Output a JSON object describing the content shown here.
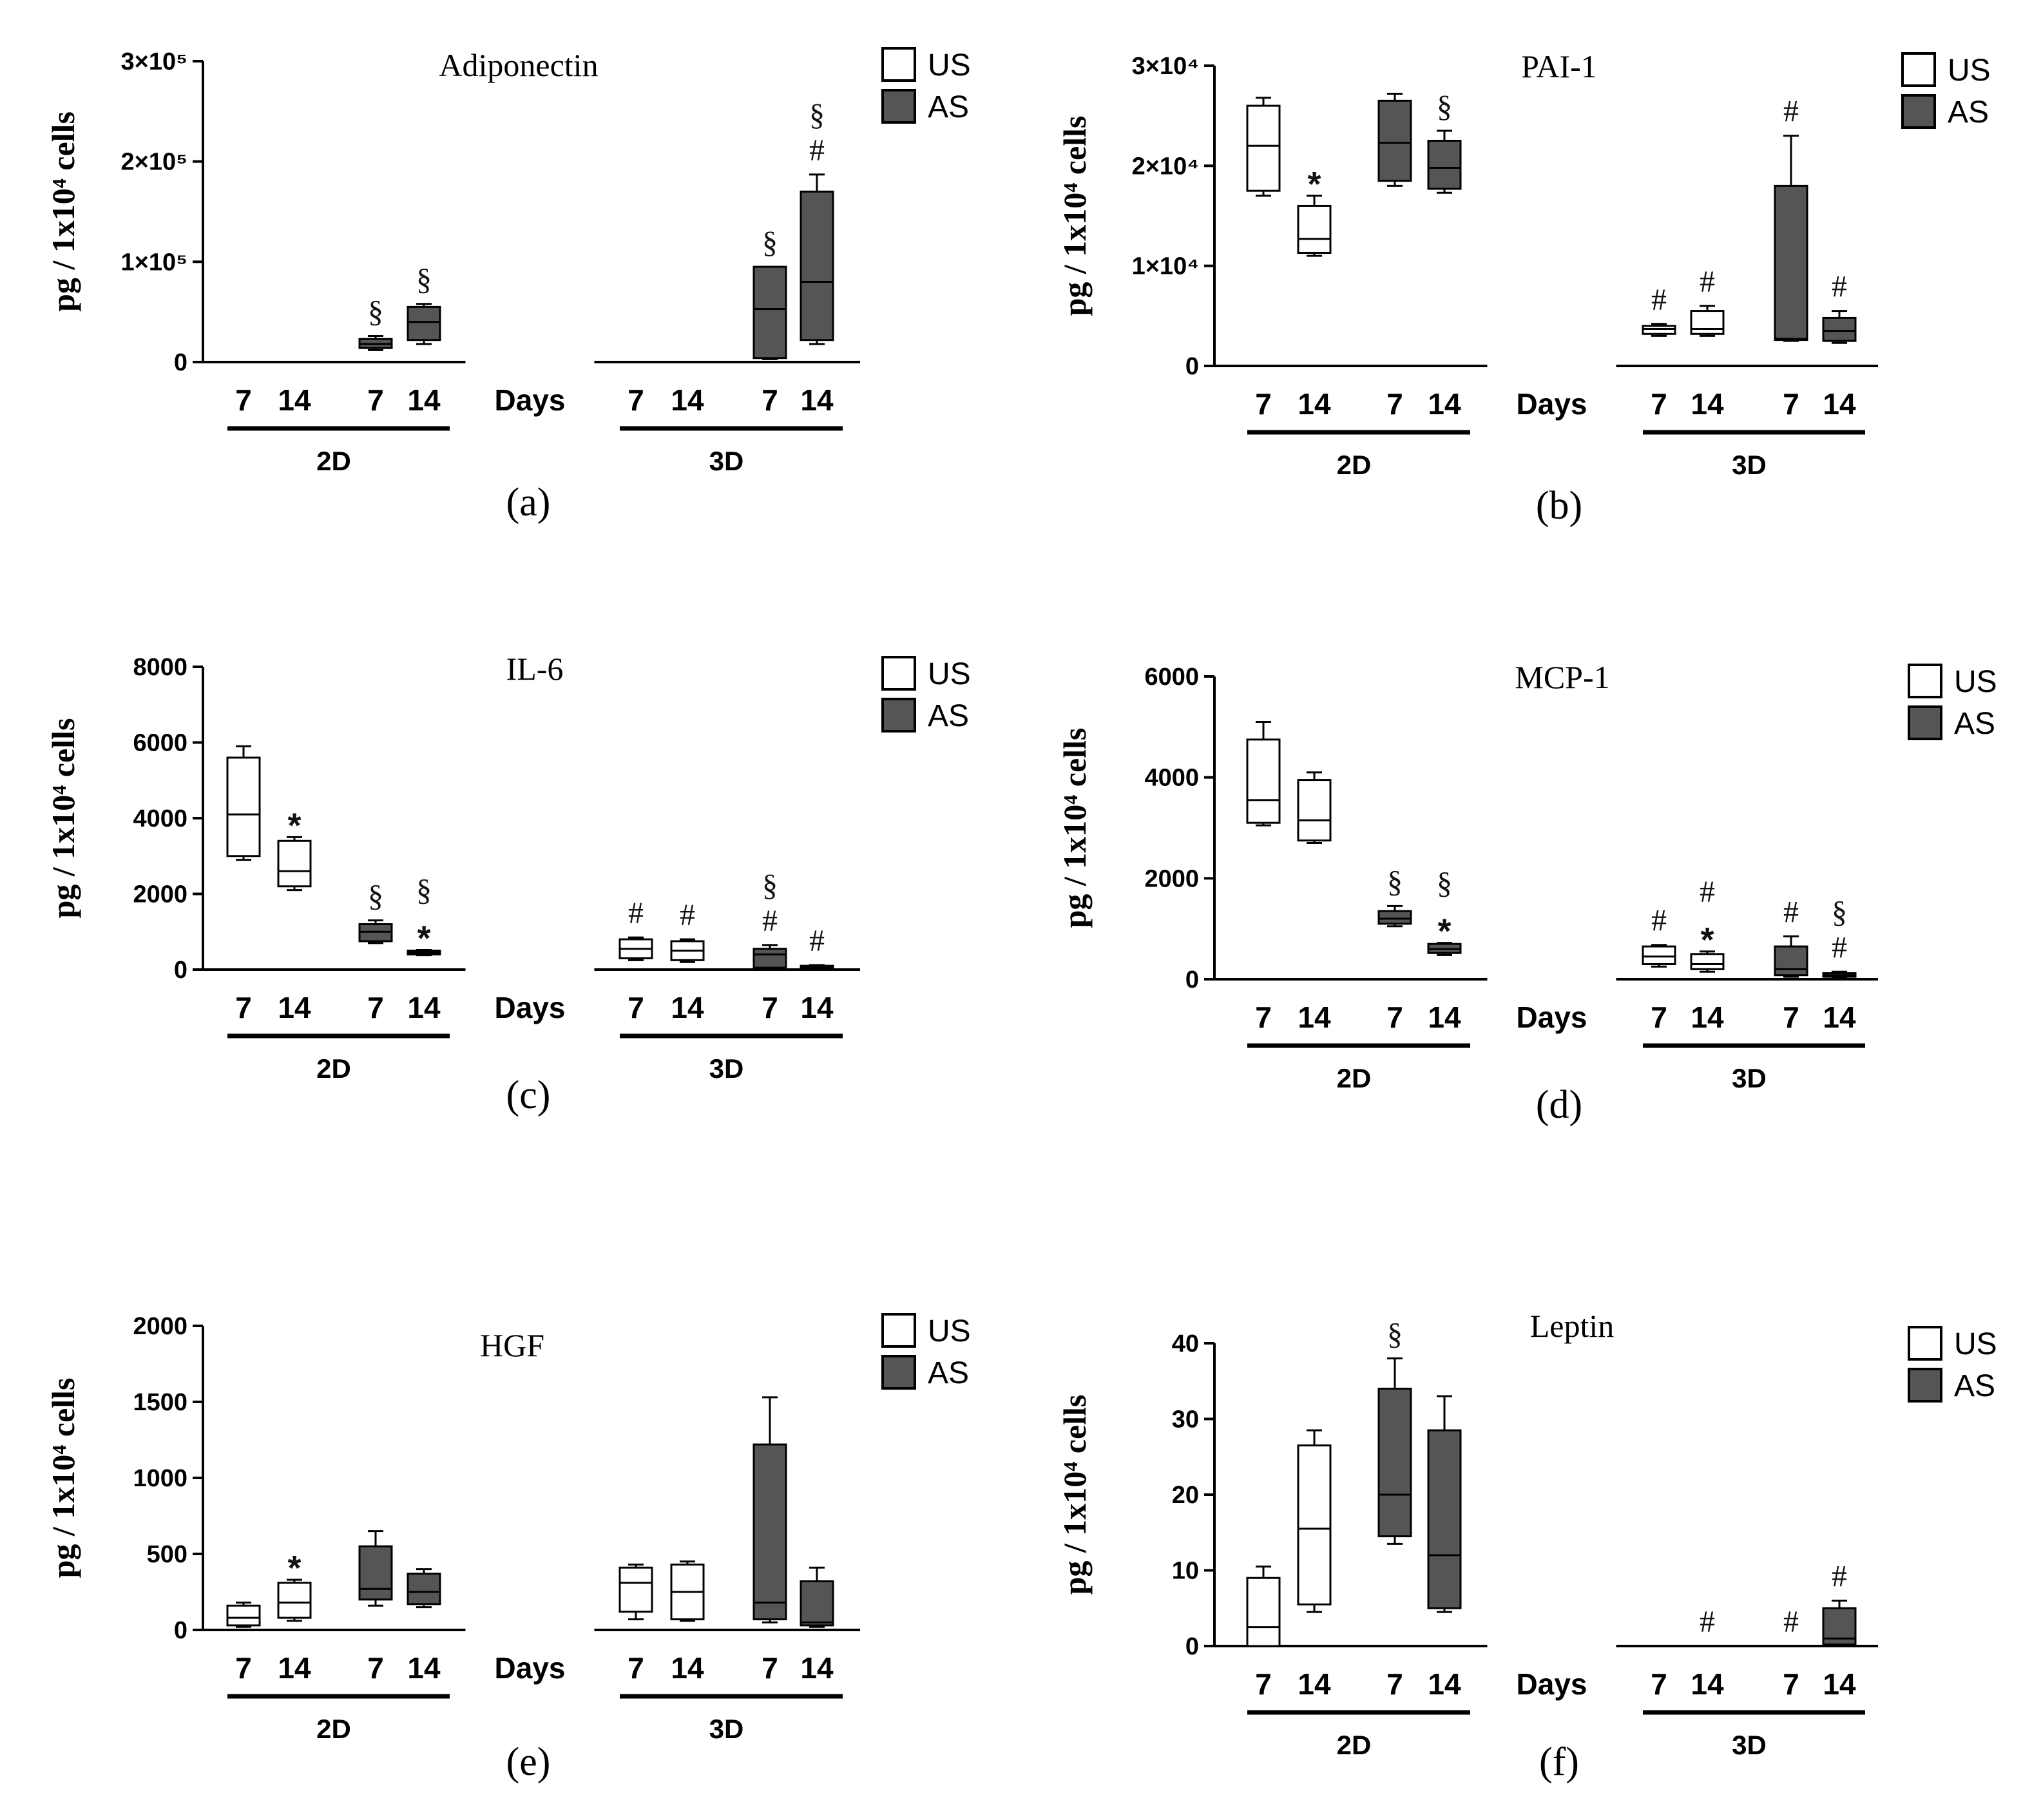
{
  "figure": {
    "group_labels": [
      "2D",
      "3D"
    ],
    "day_axis_label": "Days",
    "day_labels": [
      "7",
      "14",
      "7",
      "14"
    ],
    "legend": [
      {
        "label": "US",
        "color": "#ffffff"
      },
      {
        "label": "AS",
        "color": "#555555"
      }
    ],
    "colors": {
      "US": "#ffffff",
      "AS": "#555555",
      "ink": "#000000"
    }
  },
  "chart_data": [
    {
      "type": "box",
      "panel": "(a)",
      "title": "Adiponectin",
      "ylabel": "pg / 1x10⁴ cells",
      "ylim": [
        0,
        300000
      ],
      "yticks": [
        {
          "value": 0,
          "label": "0"
        },
        {
          "value": 100000,
          "label": "1×10⁵"
        },
        {
          "value": 200000,
          "label": "2×10⁵"
        },
        {
          "value": 300000,
          "label": "3×10⁵"
        }
      ],
      "boxes": [
        {
          "group": "2D",
          "condition": "US",
          "day": 7,
          "stats": [
            0,
            0,
            0,
            0,
            0
          ],
          "annotations": []
        },
        {
          "group": "2D",
          "condition": "US",
          "day": 14,
          "stats": [
            0,
            0,
            0,
            0,
            0
          ],
          "annotations": []
        },
        {
          "group": "2D",
          "condition": "AS",
          "day": 7,
          "stats": [
            12000,
            14000,
            18000,
            23000,
            26000
          ],
          "annotations": [
            "§"
          ]
        },
        {
          "group": "2D",
          "condition": "AS",
          "day": 14,
          "stats": [
            18000,
            22000,
            40000,
            55000,
            58000
          ],
          "annotations": [
            "§"
          ]
        },
        {
          "group": "3D",
          "condition": "US",
          "day": 7,
          "stats": [
            0,
            0,
            0,
            0,
            0
          ],
          "annotations": []
        },
        {
          "group": "3D",
          "condition": "US",
          "day": 14,
          "stats": [
            0,
            0,
            0,
            0,
            0
          ],
          "annotations": []
        },
        {
          "group": "3D",
          "condition": "AS",
          "day": 7,
          "stats": [
            3000,
            4000,
            53000,
            95000,
            95000
          ],
          "annotations": [
            "§"
          ]
        },
        {
          "group": "3D",
          "condition": "AS",
          "day": 14,
          "stats": [
            18000,
            22000,
            80000,
            170000,
            187000
          ],
          "annotations": [
            "#",
            "§"
          ]
        }
      ]
    },
    {
      "type": "box",
      "panel": "(b)",
      "title": "PAI-1",
      "ylabel": "pg / 1x10⁴ cells",
      "ylim": [
        0,
        30000
      ],
      "yticks": [
        {
          "value": 0,
          "label": "0"
        },
        {
          "value": 10000,
          "label": "1×10⁴"
        },
        {
          "value": 20000,
          "label": "2×10⁴"
        },
        {
          "value": 30000,
          "label": "3×10⁴"
        }
      ],
      "boxes": [
        {
          "group": "2D",
          "condition": "US",
          "day": 7,
          "stats": [
            17000,
            17500,
            22000,
            26000,
            26800
          ],
          "annotations": []
        },
        {
          "group": "2D",
          "condition": "US",
          "day": 14,
          "stats": [
            11000,
            11300,
            12700,
            16000,
            17000
          ],
          "annotations": [
            "*"
          ]
        },
        {
          "group": "2D",
          "condition": "AS",
          "day": 7,
          "stats": [
            18000,
            18500,
            22300,
            26500,
            27200
          ],
          "annotations": []
        },
        {
          "group": "2D",
          "condition": "AS",
          "day": 14,
          "stats": [
            17300,
            17700,
            19800,
            22500,
            23500
          ],
          "annotations": [
            "§"
          ]
        },
        {
          "group": "3D",
          "condition": "US",
          "day": 7,
          "stats": [
            3000,
            3200,
            3700,
            4000,
            4200
          ],
          "annotations": [
            "#"
          ]
        },
        {
          "group": "3D",
          "condition": "US",
          "day": 14,
          "stats": [
            3000,
            3200,
            3700,
            5500,
            6000
          ],
          "annotations": [
            "#"
          ]
        },
        {
          "group": "3D",
          "condition": "AS",
          "day": 7,
          "stats": [
            2500,
            2600,
            2700,
            18000,
            23000
          ],
          "annotations": [
            "#"
          ]
        },
        {
          "group": "3D",
          "condition": "AS",
          "day": 14,
          "stats": [
            2300,
            2500,
            3500,
            4800,
            5500
          ],
          "annotations": [
            "#"
          ]
        }
      ]
    },
    {
      "type": "box",
      "panel": "(c)",
      "title": "IL-6",
      "ylabel": "pg / 1x10⁴ cells",
      "ylim": [
        0,
        8000
      ],
      "yticks": [
        {
          "value": 0,
          "label": "0"
        },
        {
          "value": 2000,
          "label": "2000"
        },
        {
          "value": 4000,
          "label": "4000"
        },
        {
          "value": 6000,
          "label": "6000"
        },
        {
          "value": 8000,
          "label": "8000"
        }
      ],
      "boxes": [
        {
          "group": "2D",
          "condition": "US",
          "day": 7,
          "stats": [
            2900,
            3000,
            4100,
            5600,
            5900
          ],
          "annotations": []
        },
        {
          "group": "2D",
          "condition": "US",
          "day": 14,
          "stats": [
            2100,
            2200,
            2600,
            3400,
            3500
          ],
          "annotations": [
            "*"
          ]
        },
        {
          "group": "2D",
          "condition": "AS",
          "day": 7,
          "stats": [
            700,
            750,
            1000,
            1200,
            1300
          ],
          "annotations": [
            "§"
          ]
        },
        {
          "group": "2D",
          "condition": "AS",
          "day": 14,
          "stats": [
            380,
            400,
            450,
            500,
            520
          ],
          "annotations": [
            "*",
            "§"
          ]
        },
        {
          "group": "3D",
          "condition": "US",
          "day": 7,
          "stats": [
            250,
            300,
            550,
            800,
            850
          ],
          "annotations": [
            "#"
          ]
        },
        {
          "group": "3D",
          "condition": "US",
          "day": 14,
          "stats": [
            200,
            250,
            500,
            750,
            800
          ],
          "annotations": [
            "#"
          ]
        },
        {
          "group": "3D",
          "condition": "AS",
          "day": 7,
          "stats": [
            30,
            50,
            400,
            550,
            650
          ],
          "annotations": [
            "#",
            "§"
          ]
        },
        {
          "group": "3D",
          "condition": "AS",
          "day": 14,
          "stats": [
            10,
            20,
            50,
            100,
            120
          ],
          "annotations": [
            "#"
          ]
        }
      ]
    },
    {
      "type": "box",
      "panel": "(d)",
      "title": "MCP-1",
      "ylabel": "pg / 1x10⁴ cells",
      "ylim": [
        0,
        6000
      ],
      "yticks": [
        {
          "value": 0,
          "label": "0"
        },
        {
          "value": 2000,
          "label": "2000"
        },
        {
          "value": 4000,
          "label": "4000"
        },
        {
          "value": 6000,
          "label": "6000"
        }
      ],
      "boxes": [
        {
          "group": "2D",
          "condition": "US",
          "day": 7,
          "stats": [
            3050,
            3100,
            3550,
            4750,
            5100
          ],
          "annotations": []
        },
        {
          "group": "2D",
          "condition": "US",
          "day": 14,
          "stats": [
            2700,
            2750,
            3150,
            3950,
            4100
          ],
          "annotations": []
        },
        {
          "group": "2D",
          "condition": "AS",
          "day": 7,
          "stats": [
            1050,
            1100,
            1200,
            1350,
            1450
          ],
          "annotations": [
            "§"
          ]
        },
        {
          "group": "2D",
          "condition": "AS",
          "day": 14,
          "stats": [
            480,
            520,
            600,
            700,
            720
          ],
          "annotations": [
            "*",
            "§"
          ]
        },
        {
          "group": "3D",
          "condition": "US",
          "day": 7,
          "stats": [
            250,
            300,
            450,
            650,
            680
          ],
          "annotations": [
            "#"
          ]
        },
        {
          "group": "3D",
          "condition": "US",
          "day": 14,
          "stats": [
            150,
            200,
            300,
            500,
            550
          ],
          "annotations": [
            "*",
            "#"
          ]
        },
        {
          "group": "3D",
          "condition": "AS",
          "day": 7,
          "stats": [
            50,
            80,
            200,
            650,
            850
          ],
          "annotations": [
            "#"
          ]
        },
        {
          "group": "3D",
          "condition": "AS",
          "day": 14,
          "stats": [
            40,
            50,
            80,
            120,
            150
          ],
          "annotations": [
            "#",
            "§"
          ]
        }
      ]
    },
    {
      "type": "box",
      "panel": "(e)",
      "title": "HGF",
      "ylabel": "pg / 1x10⁴ cells",
      "ylim": [
        0,
        2000
      ],
      "yticks": [
        {
          "value": 0,
          "label": "0"
        },
        {
          "value": 500,
          "label": "500"
        },
        {
          "value": 1000,
          "label": "1000"
        },
        {
          "value": 1500,
          "label": "1500"
        },
        {
          "value": 2000,
          "label": "2000"
        }
      ],
      "boxes": [
        {
          "group": "2D",
          "condition": "US",
          "day": 7,
          "stats": [
            20,
            30,
            80,
            160,
            180
          ],
          "annotations": []
        },
        {
          "group": "2D",
          "condition": "US",
          "day": 14,
          "stats": [
            60,
            80,
            180,
            310,
            330
          ],
          "annotations": [
            "*"
          ]
        },
        {
          "group": "2D",
          "condition": "AS",
          "day": 7,
          "stats": [
            160,
            200,
            270,
            550,
            650
          ],
          "annotations": []
        },
        {
          "group": "2D",
          "condition": "AS",
          "day": 14,
          "stats": [
            150,
            170,
            250,
            370,
            400
          ],
          "annotations": []
        },
        {
          "group": "3D",
          "condition": "US",
          "day": 7,
          "stats": [
            70,
            120,
            310,
            410,
            430
          ],
          "annotations": []
        },
        {
          "group": "3D",
          "condition": "US",
          "day": 14,
          "stats": [
            60,
            70,
            250,
            430,
            450
          ],
          "annotations": []
        },
        {
          "group": "3D",
          "condition": "AS",
          "day": 7,
          "stats": [
            50,
            70,
            180,
            1220,
            1530
          ],
          "annotations": []
        },
        {
          "group": "3D",
          "condition": "AS",
          "day": 14,
          "stats": [
            20,
            30,
            50,
            320,
            410
          ],
          "annotations": []
        }
      ]
    },
    {
      "type": "box",
      "panel": "(f)",
      "title": "Leptin",
      "ylabel": "pg / 1x10⁴ cells",
      "ylim": [
        0,
        40
      ],
      "yticks": [
        {
          "value": 0,
          "label": "0"
        },
        {
          "value": 10,
          "label": "10"
        },
        {
          "value": 20,
          "label": "20"
        },
        {
          "value": 30,
          "label": "30"
        },
        {
          "value": 40,
          "label": "40"
        }
      ],
      "boxes": [
        {
          "group": "2D",
          "condition": "US",
          "day": 7,
          "stats": [
            0,
            0,
            2.5,
            9,
            10.5
          ],
          "annotations": []
        },
        {
          "group": "2D",
          "condition": "US",
          "day": 14,
          "stats": [
            4.5,
            5.5,
            15.5,
            26.5,
            28.5
          ],
          "annotations": []
        },
        {
          "group": "2D",
          "condition": "AS",
          "day": 7,
          "stats": [
            13.5,
            14.5,
            20,
            34,
            38
          ],
          "annotations": [
            "§"
          ]
        },
        {
          "group": "2D",
          "condition": "AS",
          "day": 14,
          "stats": [
            4.5,
            5,
            12,
            28.5,
            33
          ],
          "annotations": []
        },
        {
          "group": "3D",
          "condition": "US",
          "day": 7,
          "stats": [
            0,
            0,
            0,
            0,
            0
          ],
          "annotations": []
        },
        {
          "group": "3D",
          "condition": "US",
          "day": 14,
          "stats": [
            0,
            0,
            0,
            0,
            0
          ],
          "annotations": [
            "#"
          ]
        },
        {
          "group": "3D",
          "condition": "AS",
          "day": 7,
          "stats": [
            0,
            0,
            0,
            0,
            0
          ],
          "annotations": [
            "#"
          ]
        },
        {
          "group": "3D",
          "condition": "AS",
          "day": 14,
          "stats": [
            0,
            0.2,
            1,
            5,
            6
          ],
          "annotations": [
            "#"
          ]
        }
      ]
    }
  ]
}
